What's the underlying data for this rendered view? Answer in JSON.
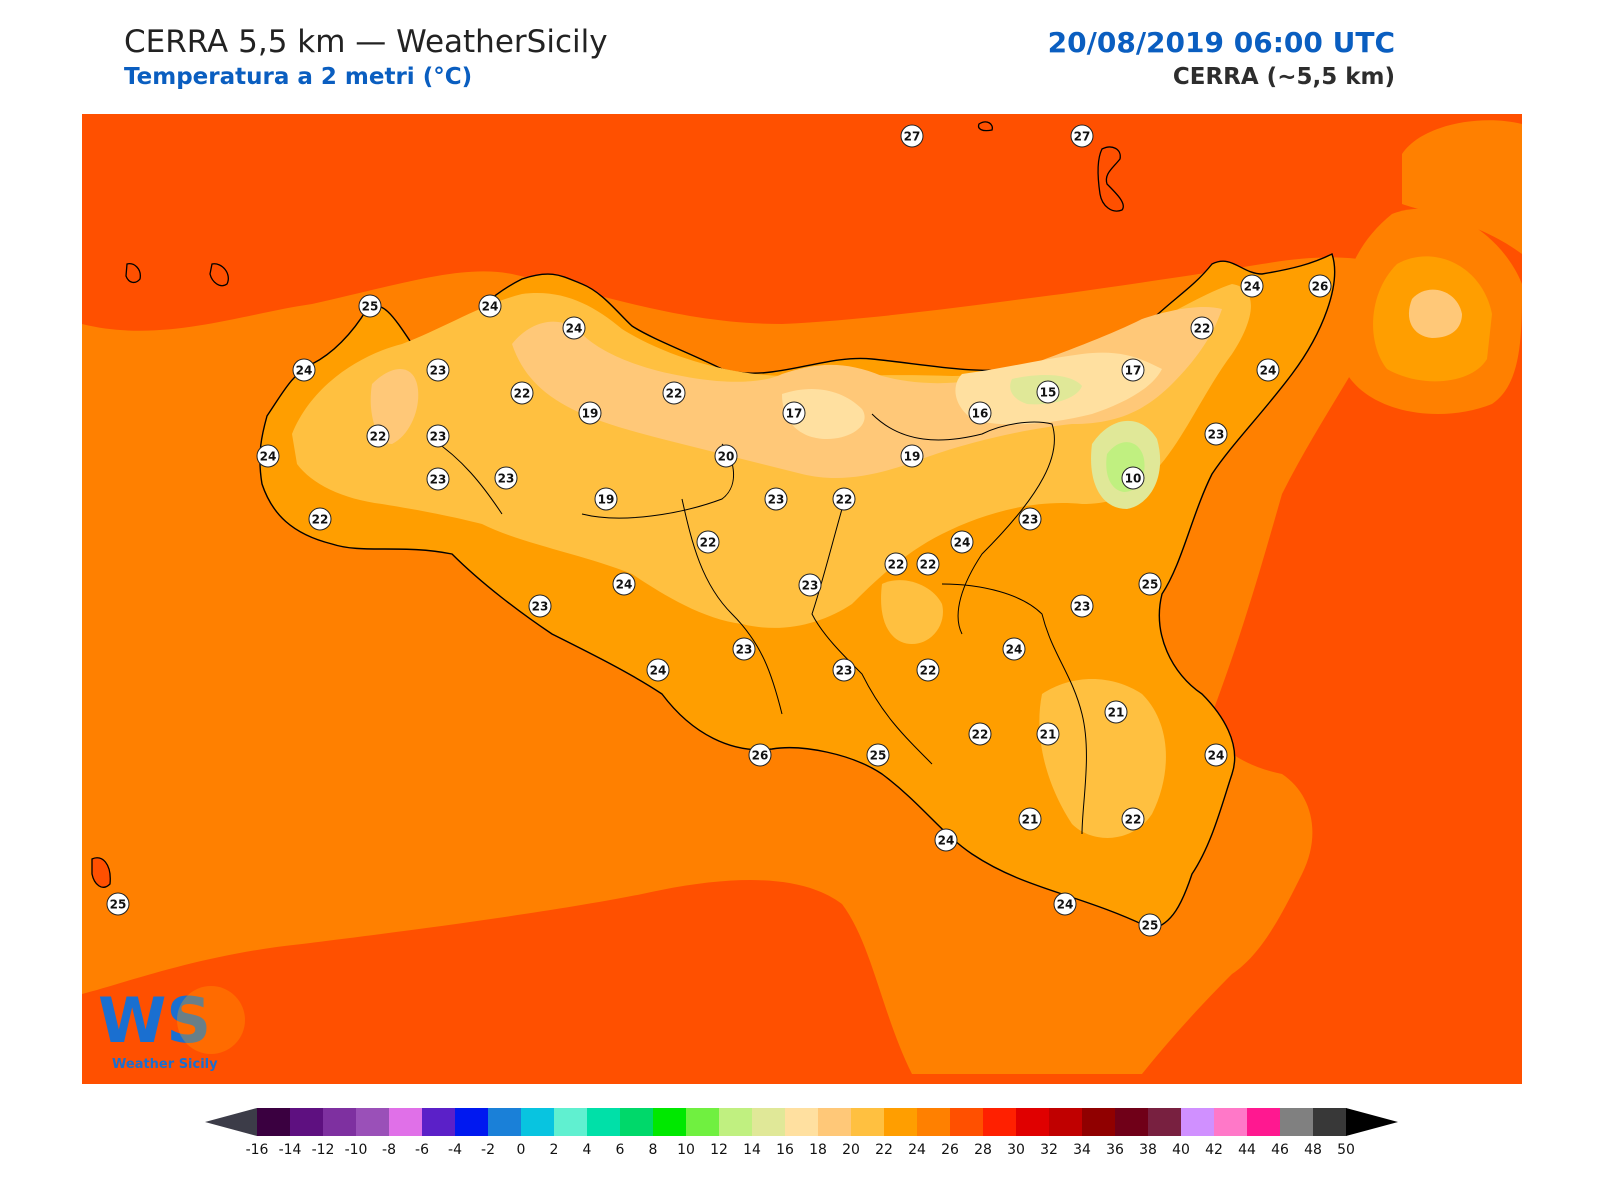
{
  "header": {
    "title": "CERRA 5,5 km — WeatherSicily",
    "subtitle": "Temperatura a 2 metri (°C)",
    "datetime": "20/08/2019 06:00 UTC",
    "model": "CERRA (~5,5 km)"
  },
  "logo": {
    "text": "WS",
    "name": "Weather Sicily"
  },
  "colorbar": {
    "ticks": [
      "-16",
      "-14",
      "-12",
      "-10",
      "-8",
      "-6",
      "-4",
      "-2",
      "0",
      "2",
      "4",
      "6",
      "8",
      "10",
      "12",
      "14",
      "16",
      "18",
      "20",
      "22",
      "24",
      "26",
      "28",
      "30",
      "32",
      "34",
      "36",
      "38",
      "40",
      "42",
      "44",
      "46",
      "48",
      "50"
    ],
    "colors": [
      "#3a0040",
      "#5e1080",
      "#7e30a0",
      "#9a50b8",
      "#e070e8",
      "#5b20c8",
      "#0018f0",
      "#1a80d8",
      "#08c4e0",
      "#60f0d0",
      "#00e0a8",
      "#00d86a",
      "#00e800",
      "#70f040",
      "#c0f080",
      "#e0e898",
      "#ffe0a0",
      "#ffc878",
      "#ffc040",
      "#ff9e00",
      "#ff8000",
      "#ff5000",
      "#ff2000",
      "#e00000",
      "#c00000",
      "#900000",
      "#700018",
      "#782040",
      "#d090ff",
      "#ff78c8",
      "#ff1890",
      "#808080",
      "#383838"
    ],
    "under_color": "#3c3c48",
    "over_color": "#000000"
  },
  "map": {
    "sea_color": "#ff5000",
    "land_base_color": "#ff9e00",
    "stations": [
      {
        "v": "27"
      },
      {
        "v": "27"
      },
      {
        "v": "25"
      },
      {
        "v": "24"
      },
      {
        "v": "24"
      },
      {
        "v": "24"
      },
      {
        "v": "26"
      },
      {
        "v": "24"
      },
      {
        "v": "23"
      },
      {
        "v": "22"
      },
      {
        "v": "22"
      },
      {
        "v": "23"
      },
      {
        "v": "22"
      },
      {
        "v": "19"
      },
      {
        "v": "23"
      },
      {
        "v": "17"
      },
      {
        "v": "15"
      },
      {
        "v": "17"
      },
      {
        "v": "24"
      },
      {
        "v": "22"
      },
      {
        "v": "22"
      },
      {
        "v": "24"
      },
      {
        "v": "16"
      },
      {
        "v": "23"
      },
      {
        "v": "23"
      },
      {
        "v": "20"
      },
      {
        "v": "19"
      },
      {
        "v": "10"
      },
      {
        "v": "22"
      },
      {
        "v": "19"
      },
      {
        "v": "23"
      },
      {
        "v": "22"
      },
      {
        "v": "22"
      },
      {
        "v": "23"
      },
      {
        "v": "24"
      },
      {
        "v": "23"
      },
      {
        "v": "22"
      },
      {
        "v": "24"
      },
      {
        "v": "23"
      },
      {
        "v": "25"
      },
      {
        "v": "23"
      },
      {
        "v": "23"
      },
      {
        "v": "24"
      },
      {
        "v": "24"
      },
      {
        "v": "23"
      },
      {
        "v": "22"
      },
      {
        "v": "21"
      },
      {
        "v": "22"
      },
      {
        "v": "21"
      },
      {
        "v": "26"
      },
      {
        "v": "25"
      },
      {
        "v": "24"
      },
      {
        "v": "21"
      },
      {
        "v": "22"
      },
      {
        "v": "24"
      },
      {
        "v": "25"
      },
      {
        "v": "24"
      },
      {
        "v": "25"
      }
    ]
  }
}
